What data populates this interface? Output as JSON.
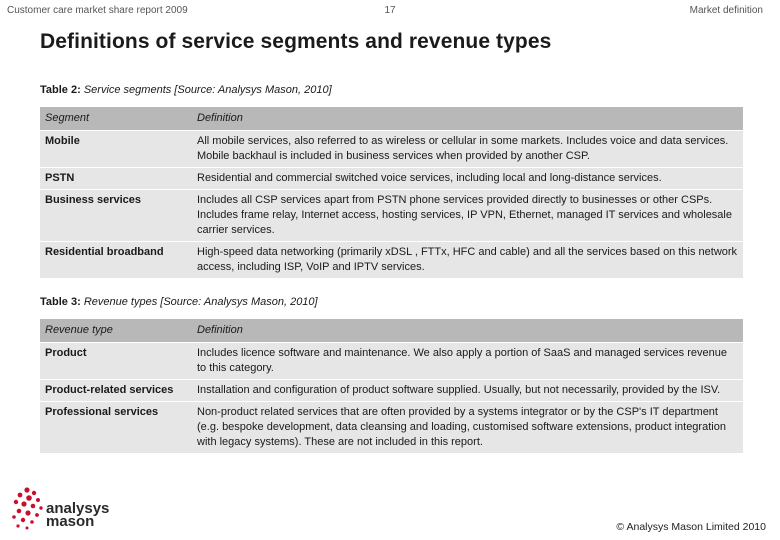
{
  "header": {
    "left": "Customer care market share report 2009",
    "page_number": "17",
    "right": "Market definition"
  },
  "title": "Definitions of service segments and revenue types",
  "table2": {
    "caption_label": "Table 2:",
    "caption_text": " Service segments [Source: Analysys Mason, 2010]",
    "columns": [
      "Segment",
      "Definition"
    ],
    "rows": [
      [
        "Mobile",
        "All mobile services, also referred to as wireless or cellular in some markets. Includes voice and data services. Mobile backhaul is included in business services when provided by another CSP."
      ],
      [
        "PSTN",
        "Residential and commercial switched voice services, including local and long-distance services."
      ],
      [
        "Business services",
        "Includes all CSP services apart from PSTN phone services provided directly to businesses or other CSPs. Includes frame relay, Internet access, hosting services, IP VPN, Ethernet, managed IT services and wholesale carrier services."
      ],
      [
        "Residential broadband",
        "High-speed data networking (primarily xDSL , FTTx, HFC and cable) and all the services based on this network access, including ISP, VoIP and IPTV services."
      ]
    ]
  },
  "table3": {
    "caption_label": "Table 3:",
    "caption_text": " Revenue types [Source: Analysys Mason, 2010]",
    "columns": [
      "Revenue type",
      "Definition"
    ],
    "rows": [
      [
        "Product",
        "Includes licence software and maintenance. We also apply a portion of SaaS and managed services revenue to this category."
      ],
      [
        "Product-related services",
        "Installation and configuration of product software supplied. Usually, but not necessarily, provided by the ISV."
      ],
      [
        "Professional services",
        "Non-product related services that are often provided by a systems integrator or by the CSP's IT department (e.g. bespoke development, data cleansing and loading, customised software extensions, product integration with legacy systems). These are not included in this report."
      ]
    ]
  },
  "logo": {
    "line1": "analysys",
    "line2": "mason",
    "accent_color": "#c8102e"
  },
  "footer": {
    "copyright": "© Analysys Mason Limited 2010"
  }
}
